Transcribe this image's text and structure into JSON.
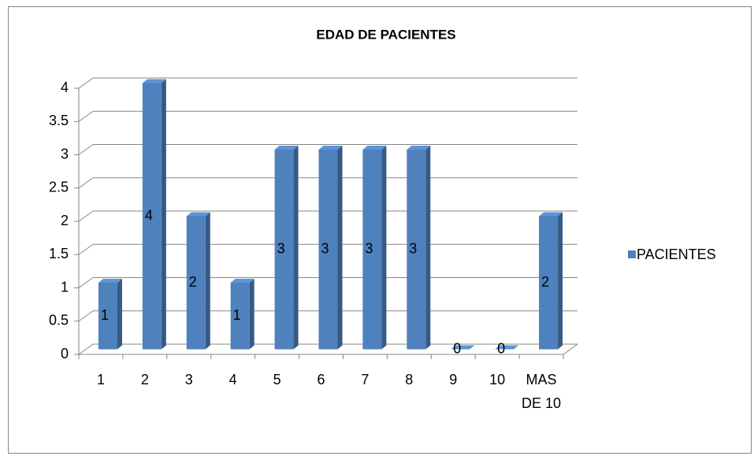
{
  "chart_data": {
    "type": "bar3d",
    "title": "EDAD DE PACIENTES",
    "categories": [
      "1",
      "2",
      "3",
      "4",
      "5",
      "6",
      "7",
      "8",
      "9",
      "10",
      "MAS DE 10"
    ],
    "series": [
      {
        "name": "PACIENTES",
        "color": "#4f81bd",
        "values": [
          1,
          4,
          2,
          1,
          3,
          3,
          3,
          3,
          0,
          0,
          2
        ]
      }
    ],
    "ylim": [
      0,
      4
    ],
    "yticks": [
      0,
      0.5,
      1,
      1.5,
      2,
      2.5,
      3,
      3.5,
      4
    ],
    "grid": true,
    "legend": "right"
  }
}
